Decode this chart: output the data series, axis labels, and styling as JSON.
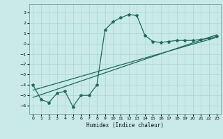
{
  "title": "",
  "xlabel": "Humidex (Indice chaleur)",
  "xlim": [
    -0.5,
    23.5
  ],
  "ylim": [
    -6.8,
    3.8
  ],
  "xticks": [
    0,
    1,
    2,
    3,
    4,
    5,
    6,
    7,
    8,
    9,
    10,
    11,
    12,
    13,
    14,
    15,
    16,
    17,
    18,
    19,
    20,
    21,
    22,
    23
  ],
  "yticks": [
    -6,
    -5,
    -4,
    -3,
    -2,
    -1,
    0,
    1,
    2,
    3
  ],
  "bg_color": "#caeaea",
  "grid_color": "#aad4d4",
  "line_color": "#1a6b5a",
  "curve1_x": [
    0,
    1,
    2,
    3,
    4,
    5,
    6,
    7,
    8,
    9,
    10,
    11,
    12,
    13,
    14,
    15,
    16,
    17,
    18,
    19,
    20,
    21,
    22,
    23
  ],
  "curve1_y": [
    -4.0,
    -5.4,
    -5.7,
    -4.8,
    -4.6,
    -6.1,
    -5.0,
    -5.0,
    -4.0,
    1.3,
    2.1,
    2.5,
    2.8,
    2.7,
    0.8,
    0.2,
    0.1,
    0.2,
    0.3,
    0.3,
    0.3,
    0.4,
    0.5,
    0.7
  ],
  "line1_x": [
    0,
    23
  ],
  "line1_y": [
    -5.2,
    0.85
  ],
  "line2_x": [
    0,
    23
  ],
  "line2_y": [
    -4.5,
    0.6
  ]
}
